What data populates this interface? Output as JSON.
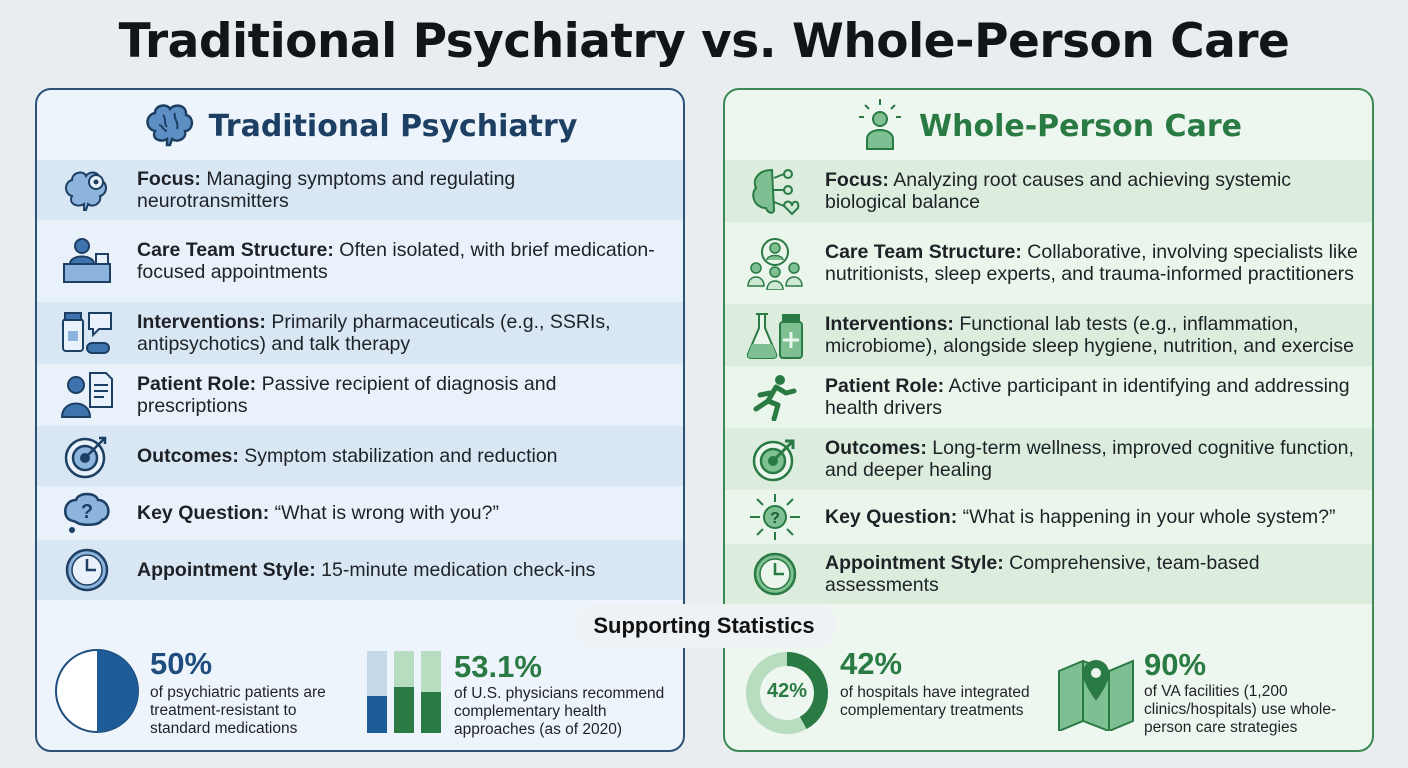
{
  "title": "Traditional Psychiatry vs. Whole-Person Care",
  "left": {
    "title": "Traditional Psychiatry",
    "icon": "brain-icon",
    "rows": [
      {
        "label": "Focus:",
        "text": " Managing symptoms and regulating neurotransmitters",
        "icon": "brain-gear-icon"
      },
      {
        "label": "Care Team Structure:",
        "text": " Often isolated, with brief medication-focused appointments",
        "icon": "doctor-desk-icon"
      },
      {
        "label": "Interventions:",
        "text": " Primarily pharmaceuticals (e.g., SSRIs, antipsychotics) and talk therapy",
        "icon": "pills-speech-icon"
      },
      {
        "label": "Patient Role:",
        "text": " Passive recipient of diagnosis and prescriptions",
        "icon": "patient-document-icon"
      },
      {
        "label": "Outcomes:",
        "text": " Symptom stabilization and reduction",
        "icon": "target-icon"
      },
      {
        "label": "Key Question:",
        "text": " “What is wrong with you?”",
        "icon": "question-bubble-icon"
      },
      {
        "label": "Appointment Style:",
        "text": " 15-minute medication check-ins",
        "icon": "clock-icon"
      }
    ]
  },
  "right": {
    "title": "Whole-Person Care",
    "icon": "person-glow-icon",
    "rows": [
      {
        "label": "Focus:",
        "text": " Analyzing root causes and achieving systemic biological balance",
        "icon": "brain-network-icon"
      },
      {
        "label": "Care Team Structure:",
        "text": " Collaborative, involving specialists like nutritionists, sleep experts, and trauma-informed practitioners",
        "icon": "team-icon"
      },
      {
        "label": "Interventions:",
        "text": " Functional lab tests (e.g., inflammation, microbiome), alongside sleep hygiene, nutrition, and exercise",
        "icon": "lab-flask-icon"
      },
      {
        "label": "Patient Role:",
        "text": " Active participant in identifying and addressing health drivers",
        "icon": "running-person-icon"
      },
      {
        "label": "Outcomes:",
        "text": " Long-term wellness, improved cognitive function, and deeper healing",
        "icon": "target-arrow-icon"
      },
      {
        "label": "Key Question:",
        "text": " “What is happening in your whole system?”",
        "icon": "question-arrows-icon"
      },
      {
        "label": "Appointment Style:",
        "text": " Comprehensive, team-based assessments",
        "icon": "clock-icon"
      }
    ]
  },
  "stats": {
    "title": "Supporting Statistics",
    "items": [
      {
        "value": "50%",
        "desc": "of psychiatric patients are treatment-resistant to standard medications",
        "fraction": 0.5,
        "icon": "pie-chart-icon"
      },
      {
        "value": "53.1%",
        "desc": "of U.S. physicians recommend complementary health approaches (as of 2020)",
        "icon": "bar-chart-icon"
      },
      {
        "value": "42%",
        "ring_label": "42%",
        "desc": "of hospitals have integrated complementary treatments",
        "fraction": 0.42,
        "icon": "donut-chart-icon"
      },
      {
        "value": "90%",
        "desc": "of VA facilities (1,200 clinics/hospitals) use whole-person care strategies",
        "icon": "map-pin-icon"
      }
    ]
  },
  "colors": {
    "blue": "#1e4d7e",
    "green": "#2a7a44"
  }
}
